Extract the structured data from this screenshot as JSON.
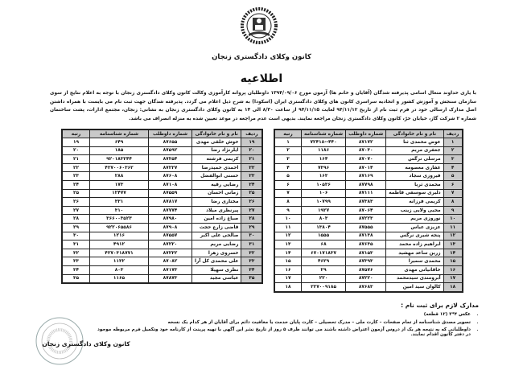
{
  "header": {
    "logo_icon": "bar-association-emblem-icon",
    "org_title": "کانون وکلای دادگستری زنجان",
    "notice_title": "اطلاعیه",
    "intro": "با یاری خداوند متعال اسامی پذیرفته شدگان (آقایان و خانم ها) آزمون مورخ ۱۳۹۴/۰۹/۰۶ داوطلبان پروانه کارآموزی وکالت کانون وکلای دادگستری زنجان با توجه به اعلام نتایج از سوی سازمان سنجش و آموزش کشور و اتحادیه سراسری کانون های وکلای دادگستری ایران (اسکودا) به شرح ذیل اعلام می گردد. پذیرفته شدگان جهت ثبت نام می بایست با همراه داشتن اصل مدارک ارسالی خود در فرم ثبت نام از تاریخ ۹۴/۱۱/۱۲ لغایت ۹۴/۱۱/۱۵ از ساعت ۸/۳۰ الی ۱۴ به کانون وکلای دادگستری زنجان به نشانی: زنجان، مجتمع ادارات، پشت ساختمان شماره ۲ شرکت گاز، خیابان حرّ، کانون وکلای دادگستری زنجان مراجعه نمایند. بدیهی است عدم مراجعه در موعد تعیین شده به منزله انصراف می باشد."
  },
  "table": {
    "columns": [
      "ردیف",
      "نام و نام خانوادگی",
      "شماره داوطلب",
      "شماره شناسنامه",
      "رتبه"
    ],
    "rows_right": [
      [
        "۱",
        "عوض محمدی ثنا",
        "۸۷۱۷۲",
        "۴۴۰--۷۲۴۱۸",
        "۱"
      ],
      [
        "۲",
        "جعفری مریم",
        "۸۷۰۳۰",
        "۱۱۸۶",
        "۲"
      ],
      [
        "۳",
        "مرسلی نرگس",
        "۸۷۰۷۰",
        "۱۶۴",
        "۳"
      ],
      [
        "۴",
        "غفاری معصومه",
        "۸۷۰۱۴",
        "۷۳۹۶",
        "۴"
      ],
      [
        "۵",
        "فیروزی سجاد",
        "۸۷۱۶۹",
        "۱۶۳",
        "۵"
      ],
      [
        "۶",
        "محمدی ثریا",
        "۸۷۷۹۸",
        "۱۰۵۳۶",
        "۶"
      ],
      [
        "۷",
        "دلیری سوسفی فاطمه",
        "۸۷۱۱۱",
        "۱۰۶",
        "۷"
      ],
      [
        "۸",
        "کریمی فرزانه",
        "۸۷۳۸۳",
        "۱۰۷۹۹",
        "۸"
      ],
      [
        "۹",
        "محبی ولایی زینب",
        "۸۷۰۶۴",
        "۱۹۲۷",
        "۹"
      ],
      [
        "۱۰",
        "نوروزی مریم",
        "۸۷۲۲۳",
        "۸۰۳",
        "۱۰"
      ],
      [
        "۱۱",
        "عزیزی عباس",
        "۸۷۵۵۵",
        "۱۳۸۰۴",
        "۱۱"
      ],
      [
        "۱۲",
        "پنجه شیری نرگس",
        "۸۷۱۳۸",
        "۱۵۵۵",
        "۱۲"
      ],
      [
        "۱۳",
        "ابراهیم زاده محمد",
        "۸۷۶۳۵",
        "۶۸",
        "۱۳"
      ],
      [
        "۱۴",
        "زرین ساعد مهشید",
        "۸۷۱۵۳",
        "۶۷۰۱۷۱۸۳۷",
        "۱۴"
      ],
      [
        "۱۵",
        "محمدی سمیرا",
        "۸۷۳۹۳",
        "۴۶۲۹",
        "۱۵"
      ],
      [
        "۱۶",
        "خاقانیانی مهدی",
        "۸۷۵۷۶",
        "۲۹",
        "۱۶"
      ],
      [
        "۱۷",
        "آبرومندی سیدمحمد",
        "۸۷۲۲۰",
        "۲۲۰",
        "۱۷"
      ],
      [
        "۱۸",
        "کالوان سید امین",
        "۸۷۶۸۳",
        "۲۲۷۰۰۹۱۸۵",
        "۱۸"
      ]
    ],
    "rows_left": [
      [
        "۱۹",
        "خوش خلقی مهدی",
        "۸۷۶۵۵",
        "۶۴۹",
        "۱۹"
      ],
      [
        "۲۰",
        "ایلرنژاد رضا",
        "۸۷۵۹۲",
        "۱۸۵",
        "۲۰"
      ],
      [
        "۲۱",
        "کریمی فرشته",
        "۸۷۳۵۴",
        "۹۲۰۱۸۳۳۴۴",
        "۲۱"
      ],
      [
        "۲۲",
        "احمدی حمیدرضا",
        "۸۷۲۲۷",
        "۴۲۷۰۰۶۰۳۶۲",
        "۲۲"
      ],
      [
        "۲۳",
        "حسنی ابوالفضل",
        "۸۷۶۰۸",
        "۲۸۸",
        "۲۳"
      ],
      [
        "۲۴",
        "رضایی رقیه",
        "۸۷۱۰۸",
        "۱۷۳",
        "۲۴"
      ],
      [
        "۲۵",
        "زمانی احسان",
        "۸۷۵۵۹",
        "۱۲۴۷۷",
        "۲۵"
      ],
      [
        "۲۶",
        "مختاری رضا",
        "۸۷۸۱۷",
        "۳۳۱",
        "۲۶"
      ],
      [
        "۲۷",
        "پیرنظری میلاد",
        "۸۷۷۷۴",
        "۳۱۰",
        "۲۷"
      ],
      [
        "۲۸",
        "صباغ زاده امین",
        "۸۷۹۸۰",
        "۳۶۶۰۰۳۵۲۳",
        "۲۸"
      ],
      [
        "۲۹",
        "قاضی زارع حجت",
        "۸۷۹۰۸",
        "۹۲۲۰۶۵۵۸۶",
        "۲۹"
      ],
      [
        "۳۰",
        "صالحی علی اکبر",
        "۸۷۵۵۷",
        "۱۲۱۶",
        "۳۰"
      ],
      [
        "۳۱",
        "رضایی مریم",
        "۸۷۲۲۰",
        "۴۹۱۲",
        "۳۱"
      ],
      [
        "۳۲",
        "خسروی زهرا",
        "۸۷۲۳۲",
        "۴۲۷۰۳۱۸۷۷۱",
        "۳۲"
      ],
      [
        "۳۳",
        "علی محمدی کل آرا",
        "۸۷۰۸۲",
        "۱۱۳۲",
        "۳۳"
      ],
      [
        "۳۴",
        "نظری سهیلا",
        "۸۷۱۷۳",
        "۸۰۳",
        "۳۴"
      ],
      [
        "۳۵",
        "عباسی مجید",
        "۸۷۸۷۳",
        "۱۱۶۵",
        "۳۵"
      ]
    ]
  },
  "documents": {
    "title": "مدارک لازم برای ثبت نام :",
    "items": [
      "عکس ۴*۳ (۱۲ قطعه)",
      "تصویر مصدق شناسنامه از تمام صفحات – کارت ملی – مدرک تحصیلی – کارت پایان خدمت یا معافیت دائم برای آقایان از هر کدام یک نسخه",
      "داوطلبانی که به نتیجه هر یک از دروس آزمون اعتراض داشته باشند می توانند ظرف ۵ روز از تاریخ نشر این آگهی با تهیه پرینت از کارنامه خود وتکمیل فرم مربوطه موجود در دفتر کانون اقدام نمایند."
    ]
  },
  "footer": {
    "stamp_icon": "official-stamp-icon",
    "signature": "کانون وکلای دادگستری زنجان"
  }
}
